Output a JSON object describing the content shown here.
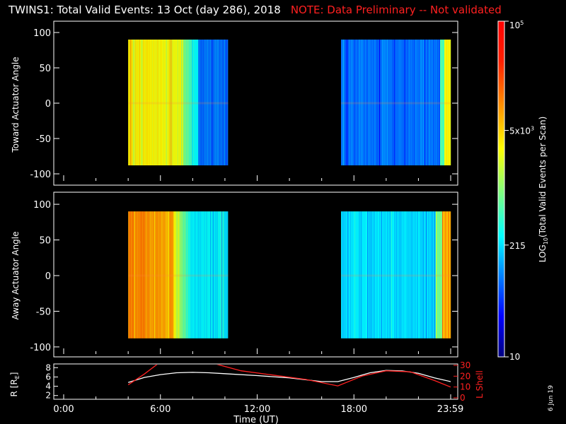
{
  "title": "TWINS1: Total Valid Events: 13 Oct (day 286), 2018",
  "note": "NOTE: Data Preliminary -- Not validated",
  "date_stamp": "6 Jun 19",
  "chart_data": [
    {
      "type": "heatmap",
      "ylabel": "Toward Actuator Angle",
      "ylim": [
        -110,
        110
      ],
      "yticks": [
        100,
        50,
        0,
        -50,
        -100
      ],
      "x_unit": "hours UT",
      "data_blocks": [
        {
          "x_start": 4.0,
          "x_end": 10.2,
          "y_range": [
            -88,
            90
          ],
          "profile": "toward_early"
        },
        {
          "x_start": 17.2,
          "x_end": 24.0,
          "y_range": [
            -88,
            90
          ],
          "profile": "toward_late"
        }
      ]
    },
    {
      "type": "heatmap",
      "ylabel": "Away Actuator Angle",
      "ylim": [
        -110,
        110
      ],
      "yticks": [
        100,
        50,
        0,
        -50,
        -100
      ],
      "x_unit": "hours UT",
      "data_blocks": [
        {
          "x_start": 4.0,
          "x_end": 10.2,
          "y_range": [
            -88,
            90
          ],
          "profile": "away_early"
        },
        {
          "x_start": 17.2,
          "x_end": 24.0,
          "y_range": [
            -88,
            90
          ],
          "profile": "away_late"
        }
      ]
    },
    {
      "type": "line",
      "ylabel": "R [RE]",
      "ylim": [
        1.5,
        8.5
      ],
      "yticks": [
        2,
        4,
        6,
        8
      ],
      "y2label": "L Shell",
      "y2lim": [
        0,
        30
      ],
      "y2ticks": [
        0,
        10,
        20,
        30
      ],
      "xlabel": "Time (UT)",
      "xticks": [
        "0:00",
        "6:00",
        "12:00",
        "18:00",
        "23:59"
      ],
      "xtick_values": [
        0,
        6,
        12,
        18,
        23.98
      ],
      "series": [
        {
          "color": "#ffffff",
          "axis": "left",
          "x": [
            4.0,
            5.0,
            6.0,
            7.0,
            8.0,
            9.0,
            10.0,
            12.0,
            14.0,
            16.0,
            17.0,
            18.0,
            19.0,
            20.0,
            21.0,
            22.0,
            23.0,
            24.0
          ],
          "y": [
            4.8,
            5.9,
            6.5,
            6.9,
            7.0,
            6.9,
            6.7,
            6.3,
            5.8,
            5.0,
            5.0,
            5.9,
            6.9,
            7.4,
            7.3,
            6.8,
            5.8,
            5.0
          ]
        },
        {
          "color": "#ff2020",
          "axis": "right",
          "x": [
            4.0,
            5.0,
            5.8
          ],
          "y": [
            12,
            22,
            31
          ]
        },
        {
          "color": "#ff2020",
          "axis": "right",
          "x": [
            9.5,
            11.0,
            13.0,
            15.0,
            17.0,
            18.5,
            20.0,
            21.5,
            23.0,
            24.0
          ],
          "y": [
            31,
            25,
            21,
            17,
            11,
            20,
            25,
            24,
            16,
            10
          ]
        }
      ]
    }
  ],
  "colorbar": {
    "label": "LOG10(Total Valid Events per Scan)",
    "scale": "log",
    "range": [
      10,
      100000
    ],
    "ticks": [
      {
        "label": "10",
        "value": 10
      },
      {
        "label": "215",
        "value": 215
      },
      {
        "label": "5x10^3",
        "value": 5000
      },
      {
        "label": "10^5",
        "value": 100000
      }
    ]
  }
}
